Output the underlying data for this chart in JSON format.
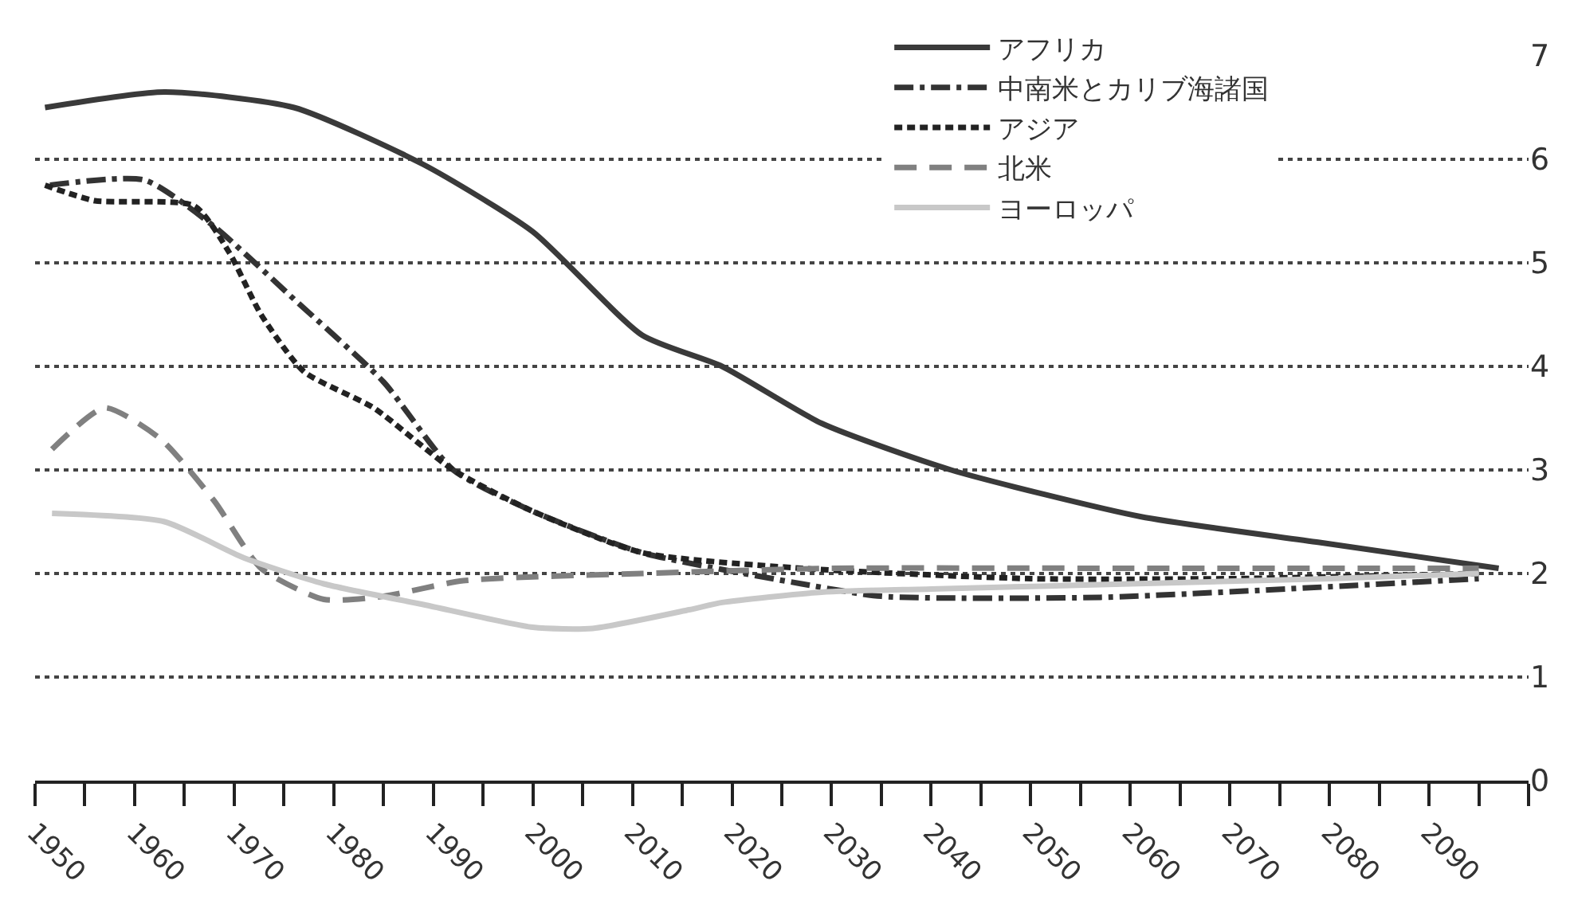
{
  "chart_data": {
    "type": "line",
    "xlim": [
      1950,
      2100
    ],
    "xticks": [
      1950,
      {
        "value": 1955,
        "label": null
      },
      1960,
      {
        "value": 1965,
        "label": null
      },
      1970,
      {
        "value": 1975,
        "label": null
      },
      1980,
      {
        "value": 1985,
        "label": null
      },
      1990,
      {
        "value": 1995,
        "label": null
      },
      2000,
      {
        "value": 2005,
        "label": null
      },
      2010,
      {
        "value": 2015,
        "label": null
      },
      2020,
      {
        "value": 2025,
        "label": null
      },
      2030,
      {
        "value": 2035,
        "label": null
      },
      2040,
      {
        "value": 2045,
        "label": null
      },
      2050,
      {
        "value": 2055,
        "label": null
      },
      2060,
      {
        "value": 2065,
        "label": null
      },
      2070,
      {
        "value": 2075,
        "label": null
      },
      2080,
      {
        "value": 2085,
        "label": null
      },
      2090,
      {
        "value": 2095,
        "label": null
      },
      {
        "value": 2100,
        "label": null
      }
    ],
    "ylim": [
      0,
      7
    ],
    "yticks": [
      0,
      1,
      2,
      3,
      4,
      5,
      6,
      7
    ],
    "grid": "y",
    "legend": "top right",
    "series": [
      {
        "name": "アフリカ",
        "color": "#3a3a3a",
        "line_style": "solid",
        "x": [
          1951,
          1963,
          1976,
          1989,
          2000,
          2011,
          2019,
          2029,
          2042,
          2061,
          2079,
          2097
        ],
        "values": [
          6.5,
          6.65,
          6.5,
          5.95,
          5.3,
          4.3,
          4.0,
          3.45,
          3.0,
          2.55,
          2.3,
          2.05
        ]
      },
      {
        "name": "中南米とカリブ海諸国",
        "color": "#333333",
        "line_style": "dashdot",
        "x": [
          1951.5,
          1961,
          1968,
          1976,
          1985,
          1992,
          2000,
          2011,
          2027,
          2035,
          2057,
          2095
        ],
        "values": [
          5.75,
          5.8,
          5.35,
          4.65,
          3.85,
          3.0,
          2.6,
          2.2,
          1.9,
          1.78,
          1.77,
          1.95
        ]
      },
      {
        "name": "アジア",
        "color": "#222222",
        "line_style": "dotted",
        "x": [
          1951,
          1956,
          1966,
          1969.5,
          1972.7,
          1977,
          1984,
          1992,
          2000,
          2011,
          2027,
          2050,
          2070,
          2095
        ],
        "values": [
          5.75,
          5.6,
          5.55,
          5.1,
          4.5,
          3.95,
          3.6,
          3.0,
          2.6,
          2.2,
          2.05,
          1.95,
          1.95,
          2.0
        ]
      },
      {
        "name": "北米",
        "color": "#808080",
        "line_style": "dashed",
        "x": [
          1951.7,
          1957,
          1962.6,
          1968,
          1972.7,
          1979,
          1985,
          1993,
          2011,
          2030,
          2060,
          2095
        ],
        "values": [
          3.2,
          3.6,
          3.3,
          2.7,
          2.05,
          1.75,
          1.78,
          1.93,
          2.0,
          2.05,
          2.05,
          2.05
        ]
      },
      {
        "name": "ヨーロッパ",
        "color": "#c8c8c8",
        "line_style": "solid",
        "x": [
          1951.7,
          1963,
          1971,
          1979,
          1989,
          2000,
          2006,
          2015.7,
          2019,
          2029,
          2040,
          2060,
          2080,
          2095
        ],
        "values": [
          2.58,
          2.5,
          2.15,
          1.9,
          1.7,
          1.48,
          1.47,
          1.65,
          1.72,
          1.82,
          1.85,
          1.9,
          1.95,
          2.0
        ]
      }
    ]
  }
}
